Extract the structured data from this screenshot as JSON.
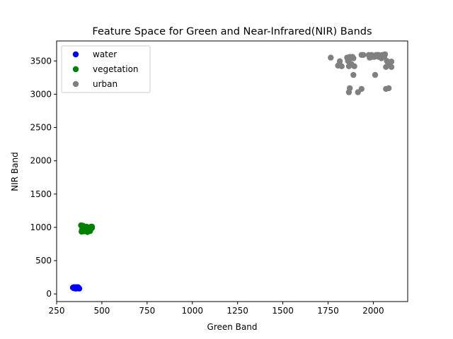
{
  "chart_data": {
    "type": "scatter",
    "title": "Feature Space for Green and Near-Infrared(NIR) Bands",
    "xlabel": "Green Band",
    "ylabel": "NIR Band",
    "xlim": [
      250,
      2190
    ],
    "ylim": [
      -115,
      3800
    ],
    "xticks": [
      "250",
      "500",
      "750",
      "1000",
      "1250",
      "1500",
      "1750",
      "2000"
    ],
    "yticks": [
      "0",
      "500",
      "1000",
      "1500",
      "2000",
      "2500",
      "3000",
      "3500"
    ],
    "grid": false,
    "legend_position": "upper-left",
    "series": [
      {
        "name": "water",
        "color": "#0000ff",
        "points": [
          [
            340,
            95
          ],
          [
            345,
            100
          ],
          [
            350,
            85
          ],
          [
            355,
            100
          ],
          [
            358,
            90
          ],
          [
            362,
            95
          ],
          [
            365,
            85
          ],
          [
            368,
            100
          ],
          [
            372,
            90
          ],
          [
            375,
            80
          ],
          [
            350,
            90
          ],
          [
            360,
            80
          ],
          [
            370,
            95
          ],
          [
            345,
            85
          ],
          [
            355,
            80
          ],
          [
            365,
            100
          ]
        ]
      },
      {
        "name": "vegetation",
        "color": "#008000",
        "points": [
          [
            385,
            1030
          ],
          [
            395,
            1025
          ],
          [
            405,
            1000
          ],
          [
            415,
            1010
          ],
          [
            425,
            990
          ],
          [
            440,
            1010
          ],
          [
            445,
            1010
          ],
          [
            390,
            960
          ],
          [
            400,
            940
          ],
          [
            410,
            950
          ],
          [
            420,
            930
          ],
          [
            430,
            960
          ],
          [
            435,
            945
          ],
          [
            388,
            935
          ],
          [
            405,
            975
          ],
          [
            415,
            985
          ],
          [
            425,
            1000
          ],
          [
            435,
            970
          ],
          [
            395,
            990
          ],
          [
            445,
            990
          ]
        ]
      },
      {
        "name": "urban",
        "color": "#808080",
        "points": [
          [
            1765,
            3550
          ],
          [
            1805,
            3430
          ],
          [
            1815,
            3495
          ],
          [
            1825,
            3420
          ],
          [
            1855,
            3550
          ],
          [
            1860,
            3500
          ],
          [
            1865,
            3420
          ],
          [
            1870,
            3560
          ],
          [
            1875,
            3540
          ],
          [
            1880,
            3450
          ],
          [
            1885,
            3560
          ],
          [
            1890,
            3540
          ],
          [
            1895,
            3420
          ],
          [
            1890,
            3290
          ],
          [
            1870,
            3090
          ],
          [
            1865,
            3030
          ],
          [
            1915,
            3030
          ],
          [
            1935,
            3080
          ],
          [
            1935,
            3590
          ],
          [
            1945,
            3590
          ],
          [
            1975,
            3590
          ],
          [
            1980,
            3550
          ],
          [
            1985,
            3560
          ],
          [
            1990,
            3590
          ],
          [
            1995,
            3560
          ],
          [
            2005,
            3560
          ],
          [
            2010,
            3290
          ],
          [
            2015,
            3590
          ],
          [
            2020,
            3570
          ],
          [
            2025,
            3590
          ],
          [
            2030,
            3560
          ],
          [
            2040,
            3570
          ],
          [
            2045,
            3540
          ],
          [
            2050,
            3590
          ],
          [
            2060,
            3560
          ],
          [
            2065,
            3600
          ],
          [
            2070,
            3410
          ],
          [
            2075,
            3500
          ],
          [
            2080,
            3480
          ],
          [
            2085,
            3460
          ],
          [
            2070,
            3080
          ],
          [
            2085,
            3090
          ],
          [
            2100,
            3410
          ],
          [
            2100,
            3490
          ],
          [
            2030,
            3590
          ]
        ]
      }
    ]
  }
}
